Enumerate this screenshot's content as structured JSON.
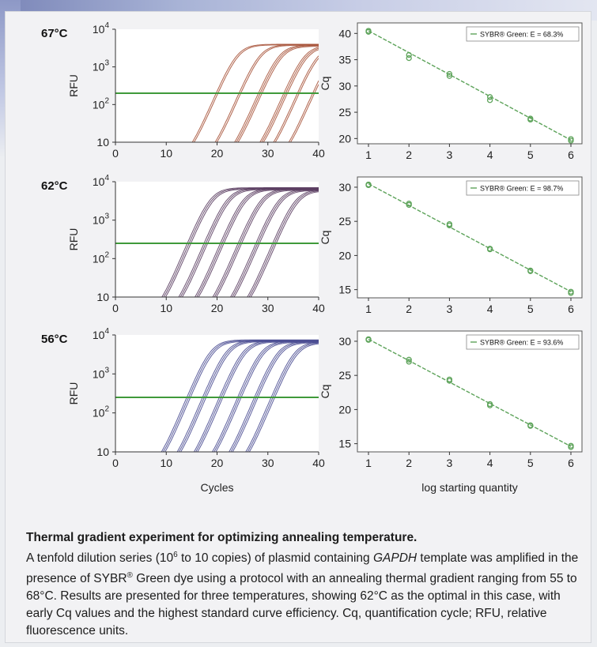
{
  "figure": {
    "amp_xlabel": "Cycles",
    "amp_ylabel": "RFU",
    "std_xlabel": "log starting quantity",
    "std_ylabel": "Cq"
  },
  "caption": {
    "title": "Thermal gradient experiment for optimizing annealing temperature.",
    "body_1": "A tenfold dilution series (10",
    "body_sup": "6",
    "body_2": " to 10 copies) of plasmid containing ",
    "body_gene": "GAPDH",
    "body_3": " template was amplified in the presence of SYBR",
    "body_reg": "®",
    "body_4": " Green dye using a protocol with an annealing thermal gradient ranging from 55 to 68°C. Results are presented for three temperatures, showing 62°C as the optimal in this case, with early Cq values and the highest standard curve efficiency. Cq, quantification cycle; RFU, relative fluorescence units."
  },
  "chart_data": [
    {
      "type": "line",
      "panel": "amplification",
      "temperature_label": "67°C",
      "xlim": [
        0,
        40
      ],
      "xticks": [
        0,
        10,
        20,
        30,
        40
      ],
      "yscale": "log",
      "ylim": [
        10,
        10000
      ],
      "yticks": [
        "10",
        "10^2",
        "10^3",
        "10^4"
      ],
      "ylabel": "RFU",
      "threshold": 200,
      "curve_color": "#a8553c",
      "plateau": 4000,
      "curves": [
        {
          "cq": 20.0,
          "n": 2
        },
        {
          "cq": 24.5,
          "n": 2
        },
        {
          "cq": 28.5,
          "n": 3
        },
        {
          "cq": 33.5,
          "n": 3
        },
        {
          "cq": 36.0,
          "n": 2
        },
        {
          "cq": 39.0,
          "n": 2
        }
      ]
    },
    {
      "type": "line",
      "panel": "amplification",
      "temperature_label": "62°C",
      "xlim": [
        0,
        40
      ],
      "xticks": [
        0,
        10,
        20,
        30,
        40
      ],
      "yscale": "log",
      "ylim": [
        10,
        10000
      ],
      "yticks": [
        "10",
        "10^2",
        "10^3",
        "10^4"
      ],
      "ylabel": "RFU",
      "threshold": 250,
      "curve_color": "#5c3f63",
      "plateau": 7000,
      "curves": [
        {
          "cq": 14.5,
          "n": 3
        },
        {
          "cq": 17.8,
          "n": 3
        },
        {
          "cq": 21.0,
          "n": 3
        },
        {
          "cq": 24.5,
          "n": 3
        },
        {
          "cq": 28.0,
          "n": 3
        },
        {
          "cq": 31.3,
          "n": 3
        }
      ]
    },
    {
      "type": "line",
      "panel": "amplification",
      "temperature_label": "56°C",
      "xlim": [
        0,
        40
      ],
      "xticks": [
        0,
        10,
        20,
        30,
        40
      ],
      "yscale": "log",
      "ylim": [
        10,
        10000
      ],
      "yticks": [
        "10",
        "10^2",
        "10^3",
        "10^4"
      ],
      "xlabel": "Cycles",
      "ylabel": "RFU",
      "threshold": 250,
      "curve_color": "#4d4f93",
      "plateau": 7500,
      "curves": [
        {
          "cq": 14.4,
          "n": 3
        },
        {
          "cq": 17.5,
          "n": 3
        },
        {
          "cq": 20.8,
          "n": 3
        },
        {
          "cq": 24.4,
          "n": 3
        },
        {
          "cq": 27.7,
          "n": 3
        },
        {
          "cq": 31.0,
          "n": 3
        }
      ]
    },
    {
      "type": "scatter",
      "panel": "standard_curve",
      "xlim": [
        1,
        6
      ],
      "xticks": [
        1,
        2,
        3,
        4,
        5,
        6
      ],
      "ylim": [
        19,
        42
      ],
      "yticks": [
        20,
        25,
        30,
        35,
        40
      ],
      "ylabel": "Cq",
      "legend": "SYBR® Green: E = 68.3%",
      "legend_position": "top-right",
      "line_color": "#5da35a",
      "fit": [
        [
          1,
          40.5
        ],
        [
          6,
          19.7
        ]
      ],
      "points": [
        [
          1,
          40.5
        ],
        [
          1,
          40.3
        ],
        [
          2,
          35.9
        ],
        [
          2,
          35.3
        ],
        [
          3,
          32.3
        ],
        [
          3,
          31.9
        ],
        [
          4,
          27.9
        ],
        [
          4,
          27.3
        ],
        [
          5,
          23.8
        ],
        [
          5,
          23.6
        ],
        [
          6,
          19.9
        ],
        [
          6,
          19.6
        ]
      ]
    },
    {
      "type": "scatter",
      "panel": "standard_curve",
      "xlim": [
        1,
        6
      ],
      "xticks": [
        1,
        2,
        3,
        4,
        5,
        6
      ],
      "ylim": [
        13.8,
        31.5
      ],
      "yticks": [
        15,
        20,
        25,
        30
      ],
      "ylabel": "Cq",
      "legend": "SYBR® Green: E = 98.7%",
      "legend_position": "top-right",
      "line_color": "#5da35a",
      "fit": [
        [
          1,
          30.5
        ],
        [
          6,
          14.7
        ]
      ],
      "points": [
        [
          1,
          30.4
        ],
        [
          1,
          30.3
        ],
        [
          2,
          27.6
        ],
        [
          2,
          27.4
        ],
        [
          3,
          24.6
        ],
        [
          3,
          24.4
        ],
        [
          4,
          21.0
        ],
        [
          4,
          20.9
        ],
        [
          5,
          17.8
        ],
        [
          5,
          17.7
        ],
        [
          6,
          14.7
        ],
        [
          6,
          14.5
        ]
      ]
    },
    {
      "type": "scatter",
      "panel": "standard_curve",
      "xlim": [
        1,
        6
      ],
      "xticks": [
        1,
        2,
        3,
        4,
        5,
        6
      ],
      "ylim": [
        13.8,
        31.5
      ],
      "yticks": [
        15,
        20,
        25,
        30
      ],
      "xlabel": "log starting quantity",
      "ylabel": "Cq",
      "legend": "SYBR® Green: E = 93.6%",
      "legend_position": "top-right",
      "line_color": "#5da35a",
      "fit": [
        [
          1,
          30.3
        ],
        [
          6,
          14.6
        ]
      ],
      "points": [
        [
          1,
          30.3
        ],
        [
          1,
          30.2
        ],
        [
          2,
          27.3
        ],
        [
          2,
          27.0
        ],
        [
          3,
          24.4
        ],
        [
          3,
          24.2
        ],
        [
          4,
          20.8
        ],
        [
          4,
          20.6
        ],
        [
          5,
          17.7
        ],
        [
          5,
          17.6
        ],
        [
          6,
          14.7
        ],
        [
          6,
          14.5
        ]
      ]
    }
  ]
}
